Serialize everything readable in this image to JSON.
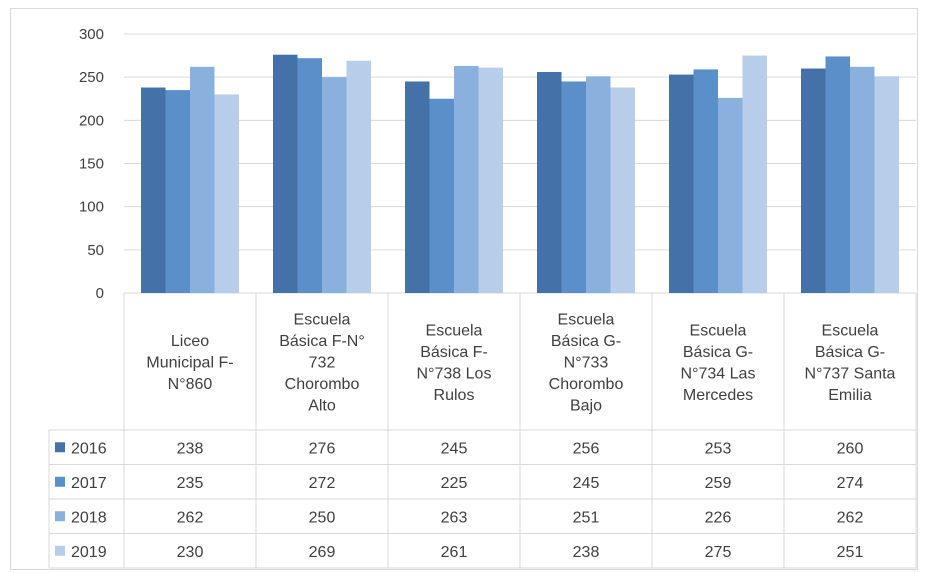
{
  "chart_data": {
    "type": "bar",
    "categories": [
      [
        "Liceo",
        "Municipal F-",
        "N°860"
      ],
      [
        "Escuela",
        "Básica F-N°",
        "732",
        "Chorombo",
        "Alto"
      ],
      [
        "Escuela",
        "Básica F-",
        "N°738 Los",
        "Rulos"
      ],
      [
        "Escuela",
        "Básica G-",
        "N°733",
        "Chorombo",
        "Bajo"
      ],
      [
        "Escuela",
        "Básica G-",
        "N°734 Las",
        "Mercedes"
      ],
      [
        "Escuela",
        "Básica G-",
        "N°737 Santa",
        "Emilia"
      ]
    ],
    "series": [
      {
        "name": "2016",
        "color": "#4472a8",
        "values": [
          238,
          276,
          245,
          256,
          253,
          260
        ]
      },
      {
        "name": "2017",
        "color": "#5b8fc9",
        "values": [
          235,
          272,
          225,
          245,
          259,
          274
        ]
      },
      {
        "name": "2018",
        "color": "#8ab0de",
        "values": [
          262,
          250,
          263,
          251,
          226,
          262
        ]
      },
      {
        "name": "2019",
        "color": "#b8cde9",
        "values": [
          230,
          269,
          261,
          238,
          275,
          251
        ]
      }
    ],
    "ylim": [
      0,
      300
    ],
    "yticks": [
      0,
      50,
      100,
      150,
      200,
      250,
      300
    ],
    "grid": true,
    "legend": "data-table"
  }
}
